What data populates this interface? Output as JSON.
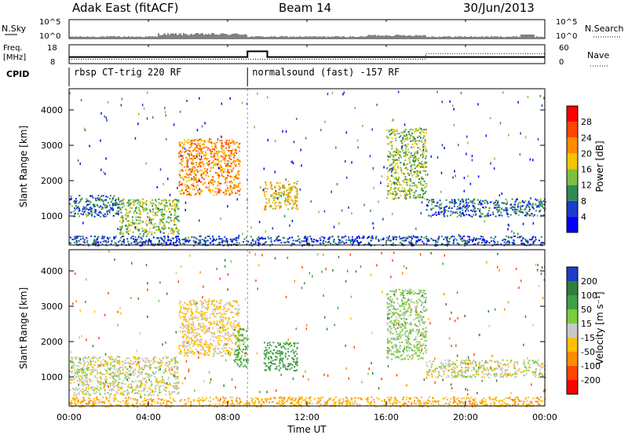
{
  "header": {
    "station": "Adak East (fitACF)",
    "beam": "Beam 14",
    "date": "30/Jun/2013"
  },
  "sky_panel": {
    "left_label": "N.Sky",
    "right_label": "N.Search",
    "tick_top": "10^5",
    "tick_bottom": "10^0",
    "right_tick_top": "10^5",
    "right_tick_bottom": "10^0"
  },
  "freq_panel": {
    "left_label_1": "Freq.",
    "left_label_2": "[MHz]",
    "tick_top": "18",
    "tick_bottom": "8",
    "right_label": "Nave",
    "right_tick_top": "60",
    "right_tick_bottom": "0",
    "freq_steps": [
      [
        0.0,
        11.5
      ],
      [
        9.0,
        14.5
      ],
      [
        10.0,
        11.5
      ],
      [
        24.0,
        11.5
      ]
    ],
    "nave_steps": [
      [
        0.0,
        14
      ],
      [
        18.0,
        14
      ],
      [
        18.0,
        32
      ],
      [
        24.0,
        32
      ]
    ]
  },
  "cpid": {
    "label": "CPID",
    "segments": [
      {
        "start": 0.0,
        "end": 9.0,
        "name": "rbsp CT-trig 220 RF"
      },
      {
        "start": 9.0,
        "end": 24.0,
        "name": "normalsound (fast) -157 RF"
      }
    ]
  },
  "x_axis": {
    "label": "Time UT",
    "ticks": [
      "00:00",
      "04:00",
      "08:00",
      "12:00",
      "16:00",
      "20:00",
      "00:00"
    ]
  },
  "power_panel": {
    "ylabel": "Slant Range [km]",
    "yticks": [
      "1000",
      "2000",
      "3000",
      "4000"
    ]
  },
  "velocity_panel": {
    "ylabel": "Slant Range [km]",
    "yticks": [
      "1000",
      "2000",
      "3000",
      "4000"
    ]
  },
  "power_colorbar": {
    "title": "Power [dB]",
    "labels": [
      "4",
      "8",
      "12",
      "16",
      "20",
      "24",
      "28"
    ],
    "colors": [
      "#0000ff",
      "#1a3cc8",
      "#2e8b57",
      "#7fbf3f",
      "#f5c400",
      "#ff8c00",
      "#ff4500",
      "#ff0000"
    ]
  },
  "velocity_colorbar": {
    "title": "Velocity [m s⁻¹]",
    "labels": [
      "200",
      "100",
      "50",
      "15",
      "-15",
      "-50",
      "-100",
      "-200"
    ],
    "colors": [
      "#1e3cc8",
      "#2f7f3a",
      "#3fa046",
      "#7ccd3c",
      "#c8c8c8",
      "#ffbf00",
      "#ff8c00",
      "#ff4500",
      "#ff0000"
    ]
  },
  "chart_data": [
    {
      "type": "heatmap",
      "title": "Power [dB]",
      "xlabel": "Time UT",
      "ylabel": "Slant Range [km]",
      "xlim": [
        0,
        24
      ],
      "ylim": [
        180,
        4600
      ],
      "zlim": [
        0,
        30
      ],
      "echo_regions": [
        {
          "t0": 0.0,
          "t1": 2.5,
          "r0": 1000,
          "r1": 1600,
          "level": 8
        },
        {
          "t0": 2.5,
          "t1": 5.5,
          "r0": 500,
          "r1": 1500,
          "level": 14
        },
        {
          "t0": 5.5,
          "t1": 8.6,
          "r0": 1600,
          "r1": 3200,
          "level": 22
        },
        {
          "t0": 9.8,
          "t1": 11.5,
          "r0": 1200,
          "r1": 2000,
          "level": 18
        },
        {
          "t0": 16.0,
          "t1": 18.0,
          "r0": 1500,
          "r1": 3500,
          "level": 14
        },
        {
          "t0": 18.0,
          "t1": 24.0,
          "r0": 1000,
          "r1": 1500,
          "level": 8
        },
        {
          "t0": 0.0,
          "t1": 24.0,
          "r0": 180,
          "r1": 450,
          "level": 6
        }
      ]
    },
    {
      "type": "heatmap",
      "title": "Velocity [m s⁻¹]",
      "xlabel": "Time UT",
      "ylabel": "Slant Range [km]",
      "xlim": [
        0,
        24
      ],
      "ylim": [
        180,
        4600
      ],
      "zlim": [
        -200,
        200
      ],
      "echo_regions": [
        {
          "t0": 0.0,
          "t1": 5.5,
          "r0": 500,
          "r1": 1600,
          "velocity": 0
        },
        {
          "t0": 5.5,
          "t1": 8.6,
          "r0": 1600,
          "r1": 3200,
          "velocity": -20
        },
        {
          "t0": 8.3,
          "t1": 9.0,
          "r0": 1300,
          "r1": 2400,
          "velocity": 60
        },
        {
          "t0": 9.8,
          "t1": 11.5,
          "r0": 1200,
          "r1": 2000,
          "velocity": 75
        },
        {
          "t0": 16.0,
          "t1": 18.0,
          "r0": 1500,
          "r1": 3500,
          "velocity": 25
        },
        {
          "t0": 18.0,
          "t1": 24.0,
          "r0": 1000,
          "r1": 1500,
          "velocity": 0
        },
        {
          "t0": 0.0,
          "t1": 24.0,
          "r0": 180,
          "r1": 450,
          "velocity": -40
        }
      ]
    }
  ]
}
